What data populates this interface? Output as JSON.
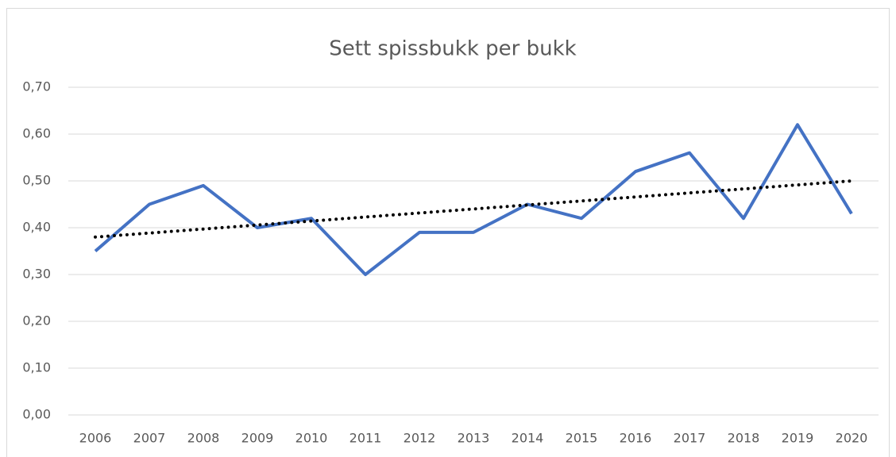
{
  "chart_data": {
    "type": "line",
    "title": "Sett spissbukk per bukk",
    "categories": [
      "2006",
      "2007",
      "2008",
      "2009",
      "2010",
      "2011",
      "2012",
      "2013",
      "2014",
      "2015",
      "2016",
      "2017",
      "2018",
      "2019",
      "2020"
    ],
    "series": [
      {
        "color": "#4472c4",
        "values": [
          0.35,
          0.45,
          0.49,
          0.4,
          0.42,
          0.3,
          0.39,
          0.39,
          0.45,
          0.42,
          0.52,
          0.56,
          0.42,
          0.62,
          0.43
        ]
      }
    ],
    "trendline": {
      "start": 0.38,
      "end": 0.5,
      "color": "#000000"
    },
    "ylim": [
      0,
      0.7
    ],
    "yticks": [
      {
        "value": 0,
        "label": "0,00"
      },
      {
        "value": 0.1,
        "label": "0,10"
      },
      {
        "value": 0.2,
        "label": "0,20"
      },
      {
        "value": 0.3,
        "label": "0,30"
      },
      {
        "value": 0.4,
        "label": "0,40"
      },
      {
        "value": 0.5,
        "label": "0,50"
      },
      {
        "value": 0.6,
        "label": "0,60"
      },
      {
        "value": 0.7,
        "label": "0,70"
      }
    ],
    "grid": true
  }
}
